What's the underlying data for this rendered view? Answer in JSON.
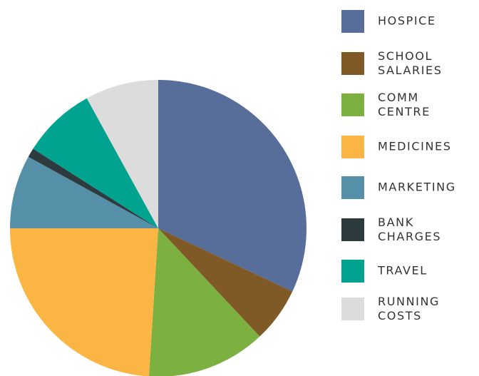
{
  "chart_data": {
    "type": "pie",
    "categories": [
      "HOSPICE",
      "SCHOOL SALARIES",
      "COMM CENTRE",
      "MEDICINES",
      "MARKETING",
      "BANK CHARGES",
      "TRAVEL",
      "RUNNING COSTS"
    ],
    "values": [
      32,
      6,
      13,
      24,
      8,
      1,
      8,
      8
    ],
    "colors": [
      "#586e9a",
      "#7f5a26",
      "#7cb040",
      "#fbb545",
      "#5590a8",
      "#2e3b3e",
      "#00a390",
      "#dcdcdc"
    ],
    "legend": "right"
  }
}
